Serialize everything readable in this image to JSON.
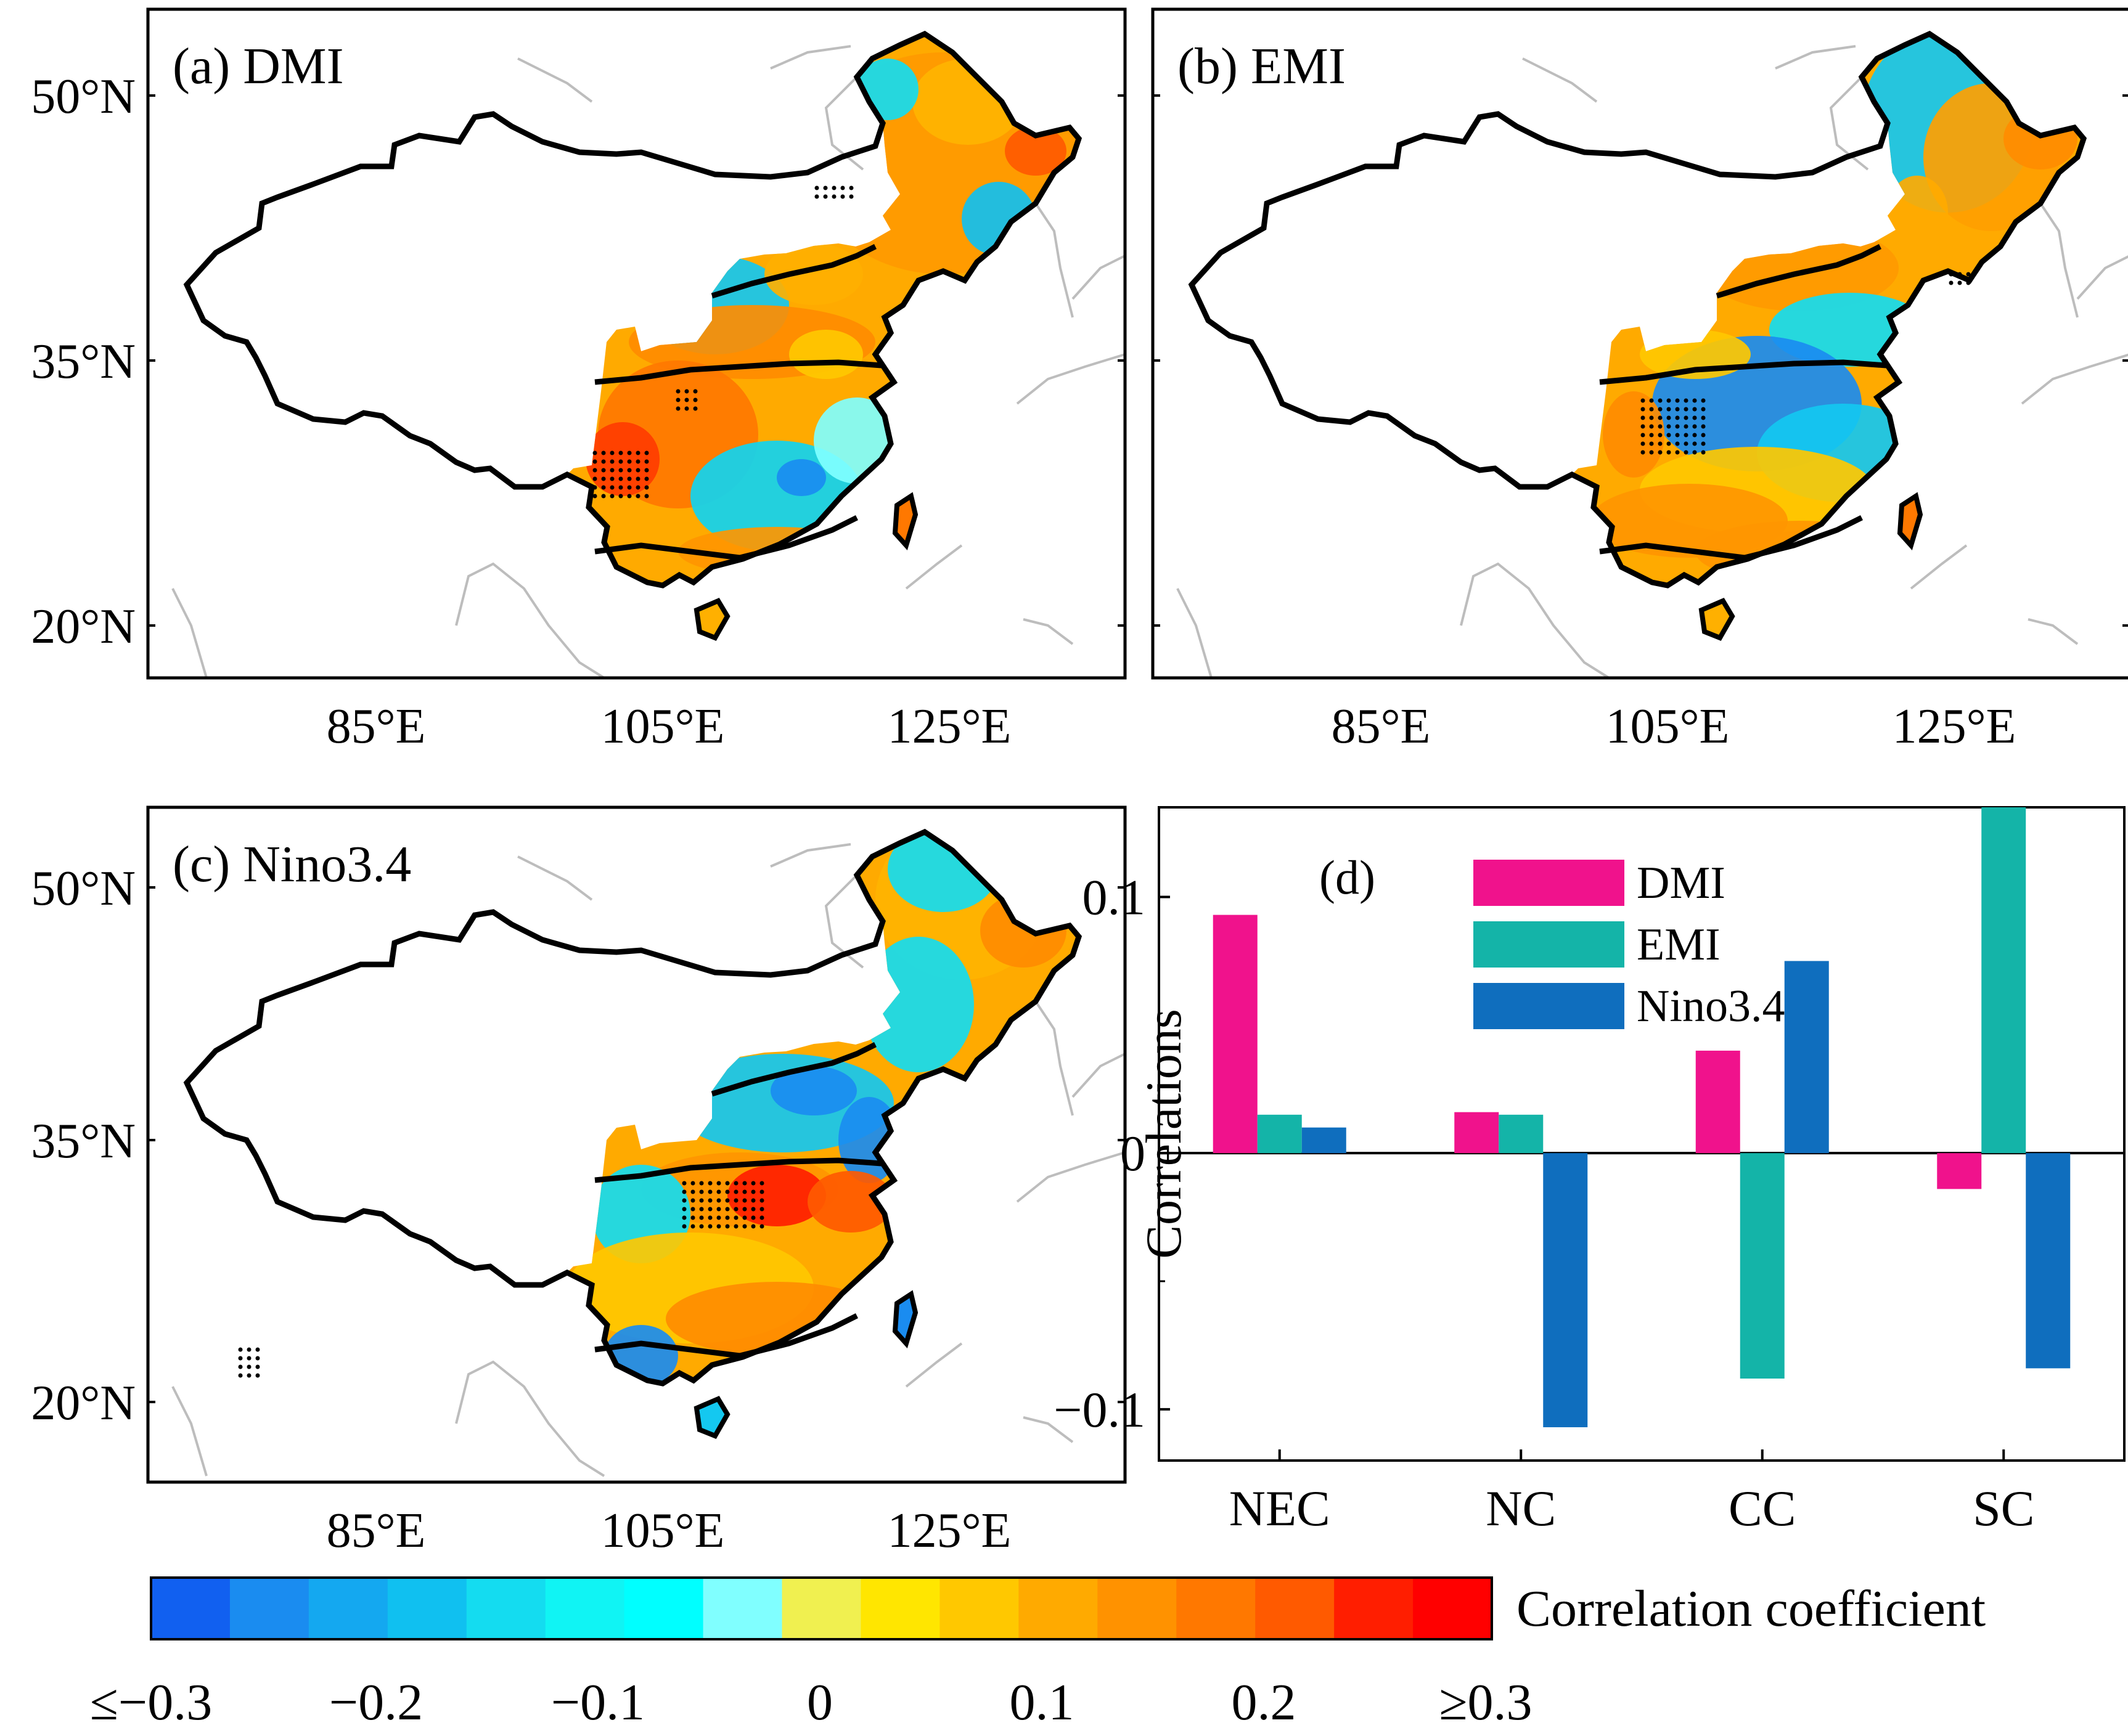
{
  "figure": {
    "lat_labels": [
      "50°N",
      "35°N",
      "20°N"
    ],
    "lon_labels": [
      "85°E",
      "105°E",
      "125°E"
    ]
  },
  "map_panels": [
    {
      "id": "a",
      "title": "(a) DMI"
    },
    {
      "id": "b",
      "title": "(b) EMI"
    },
    {
      "id": "c",
      "title": "(c) Nino3.4"
    }
  ],
  "colorbar": {
    "title": "Correlation coefficient",
    "tick_labels": [
      "≤−0.3",
      "−0.2",
      "−0.1",
      "0",
      "0.1",
      "0.2",
      "≥0.3"
    ],
    "colors": [
      "#1160f0",
      "#1a8cf0",
      "#14a8f0",
      "#10c0f0",
      "#14dcf0",
      "#10f4f4",
      "#00ffff",
      "#80ffff",
      "#f0f050",
      "#ffe600",
      "#ffc800",
      "#ffaa00",
      "#ff9200",
      "#ff7800",
      "#ff5a00",
      "#ff1e00",
      "#ff0000"
    ]
  },
  "chart_data": {
    "type": "bar",
    "panel_label": "(d)",
    "title": "",
    "xlabel": "",
    "ylabel": "Correlations",
    "categories": [
      "NEC",
      "NC",
      "CC",
      "SC"
    ],
    "ylim": [
      -0.12,
      0.135
    ],
    "yticks": [
      -0.1,
      0,
      0.1
    ],
    "ytick_labels": [
      "−0.1",
      "0",
      "0.1"
    ],
    "legend_position": "top-center",
    "series": [
      {
        "name": "DMI",
        "color": "#f0128c",
        "values": [
          0.093,
          0.016,
          0.04,
          -0.014
        ]
      },
      {
        "name": "EMI",
        "color": "#14b4a8",
        "values": [
          0.015,
          0.015,
          -0.088,
          0.135
        ]
      },
      {
        "name": "Nino3.4",
        "color": "#0f6ebe",
        "values": [
          0.01,
          -0.107,
          0.075,
          -0.084
        ]
      }
    ]
  }
}
